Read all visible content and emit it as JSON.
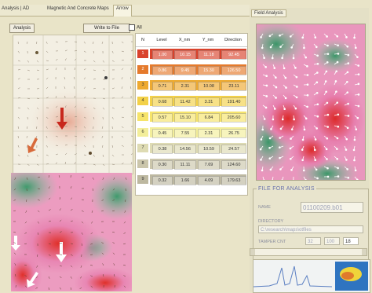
{
  "tabs": [
    {
      "label": "Analysis | AD"
    },
    {
      "label": "Magnetic And Concrete Maps"
    },
    {
      "label": "Arrow",
      "active": true
    }
  ],
  "toolbar": {
    "analysis_button": "Analysis",
    "write_button": "Write to File",
    "checkbox_all": "All"
  },
  "table": {
    "headers": [
      "N",
      "Level",
      "X_nm",
      "Y_nm",
      "Direction"
    ],
    "rows": [
      {
        "n": "1",
        "level": "1.00",
        "x": "10.15",
        "y": "11.18",
        "dir": "92.45",
        "color": "#d9422c"
      },
      {
        "n": "2",
        "level": "0.86",
        "x": "9.45",
        "y": "15.30",
        "dir": "126.50",
        "color": "#e57a2c"
      },
      {
        "n": "3",
        "level": "0.71",
        "x": "2.31",
        "y": "10.08",
        "dir": "23.11",
        "color": "#eeaa30"
      },
      {
        "n": "4",
        "level": "0.68",
        "x": "11.42",
        "y": "3.31",
        "dir": "191.40",
        "color": "#f3d148"
      },
      {
        "n": "5",
        "level": "0.57",
        "x": "15.10",
        "y": "6.84",
        "dir": "205.60",
        "color": "#f6e46a"
      },
      {
        "n": "6",
        "level": "0.45",
        "x": "7.55",
        "y": "2.31",
        "dir": "26.75",
        "color": "#f3ee9a"
      },
      {
        "n": "7",
        "level": "0.38",
        "x": "14.56",
        "y": "10.59",
        "dir": "24.57",
        "color": "#dedbb3"
      },
      {
        "n": "8",
        "level": "0.30",
        "x": "11.11",
        "y": "7.69",
        "dir": "124.60",
        "color": "#cbc6ab"
      },
      {
        "n": "9",
        "level": "0.32",
        "x": "1.66",
        "y": "4.09",
        "dir": "179.63",
        "color": "#bdb8a0"
      }
    ]
  },
  "side_panel": {
    "tab": "Field Analysis",
    "file_section": {
      "title": "FILE FOR ANALYSIS",
      "name_label": "NAME",
      "name_value": "01100209.b01",
      "directory_label": "DIRECTORY",
      "directory_value": "C:\\research\\maps\\otfiles",
      "tamper_label": "TAMPER CNT",
      "tamper_values": [
        "32",
        "100",
        "18"
      ]
    }
  },
  "colors": {
    "heat_red": "#e03a35",
    "heat_pink": "#e887b6",
    "heat_green": "#4fa378",
    "background": "#e9e4c8"
  }
}
